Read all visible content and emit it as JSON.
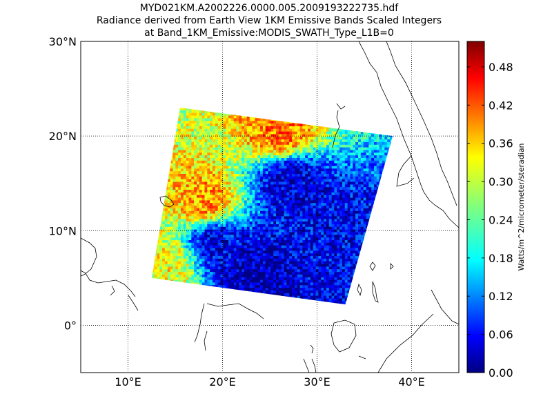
{
  "chart_data": {
    "type": "heatmap",
    "title_lines": [
      "MYD021KM.A2002226.0000.005.2009193222735.hdf",
      "Radiance derived from Earth View 1KM Emissive Bands Scaled Integers",
      "at Band_1KM_Emissive:MODIS_SWATH_Type_L1B=0"
    ],
    "projection": "cylindrical",
    "xlim": [
      5,
      45
    ],
    "ylim": [
      -5,
      30
    ],
    "x_ticks": [
      10,
      20,
      30,
      40
    ],
    "x_tick_labels": [
      "10°E",
      "20°E",
      "30°E",
      "40°E"
    ],
    "y_ticks": [
      0,
      10,
      20,
      30
    ],
    "y_tick_labels": [
      "0°",
      "10°N",
      "20°N",
      "30°N"
    ],
    "grid": "dotted",
    "colormap": "jet",
    "colorbar": {
      "range": [
        0.0,
        0.52
      ],
      "ticks": [
        0.0,
        0.06,
        0.12,
        0.18,
        0.24,
        0.3,
        0.36,
        0.42,
        0.48
      ],
      "tick_labels": [
        "0.00",
        "0.06",
        "0.12",
        "0.18",
        "0.24",
        "0.30",
        "0.36",
        "0.42",
        "0.48"
      ],
      "label": "Watts/m^2/micrometer/steradian",
      "placement": "right"
    },
    "swath_corners": [
      {
        "lon": 15.5,
        "lat": 23.0
      },
      {
        "lon": 38.0,
        "lat": 20.0
      },
      {
        "lon": 33.0,
        "lat": 2.2
      },
      {
        "lon": 12.5,
        "lat": 5.0
      }
    ],
    "regions": [
      {
        "name": "north-orange",
        "lon": 26,
        "lat": 20.5,
        "value": 0.4
      },
      {
        "name": "central-cloud-band",
        "lon": 27,
        "lat": 15.5,
        "value": 0.04
      },
      {
        "name": "west-cloud",
        "lon": 19,
        "lat": 9,
        "value": 0.05
      },
      {
        "name": "east-cloud",
        "lon": 31,
        "lat": 10,
        "value": 0.06
      },
      {
        "name": "south-cloud",
        "lon": 23,
        "lat": 5.5,
        "value": 0.02
      },
      {
        "name": "southwest-clear",
        "lon": 14,
        "lat": 6.5,
        "value": 0.32
      },
      {
        "name": "west-orange",
        "lon": 18,
        "lat": 13,
        "value": 0.38
      }
    ]
  }
}
